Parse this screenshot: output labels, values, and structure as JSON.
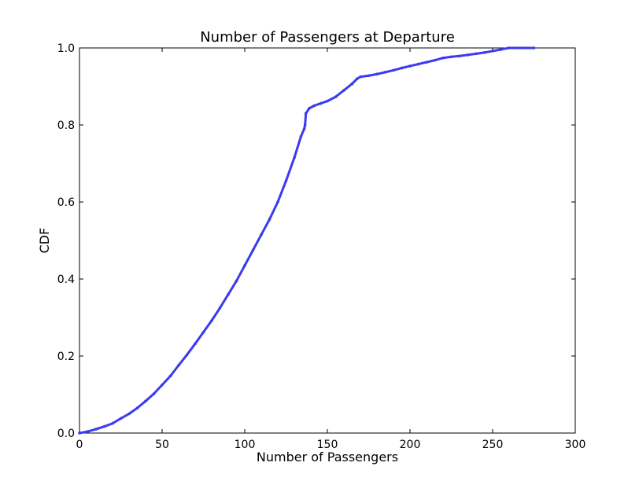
{
  "chart_data": {
    "type": "line",
    "title": "Number of Passengers at Departure",
    "xlabel": "Number of Passengers",
    "ylabel": "CDF",
    "xlim": [
      0,
      300
    ],
    "ylim": [
      0,
      1
    ],
    "xticks": [
      0,
      50,
      100,
      150,
      200,
      250,
      300
    ],
    "yticks": [
      0.0,
      0.2,
      0.4,
      0.6,
      0.8,
      1.0
    ],
    "xtick_labels": [
      "0",
      "50",
      "100",
      "150",
      "200",
      "250",
      "300"
    ],
    "ytick_labels": [
      "0.0",
      "0.2",
      "0.4",
      "0.6",
      "0.8",
      "1.0"
    ],
    "grid": false,
    "legend": null,
    "colors": {
      "series": "#3b3bf0",
      "axes": "#000000",
      "background": "#ffffff"
    },
    "series": [
      {
        "x": [
          0,
          5,
          10,
          15,
          20,
          25,
          30,
          35,
          40,
          45,
          50,
          55,
          60,
          65,
          70,
          75,
          80,
          85,
          90,
          95,
          100,
          105,
          110,
          115,
          120,
          125,
          130,
          134,
          136,
          136.5,
          137,
          139,
          142,
          146,
          150,
          155,
          160,
          165,
          168,
          170,
          175,
          180,
          185,
          190,
          195,
          200,
          205,
          210,
          215,
          220,
          225,
          230,
          235,
          240,
          245,
          250,
          255,
          260,
          265,
          270,
          275
        ],
        "y": [
          0.0,
          0.004,
          0.01,
          0.017,
          0.025,
          0.038,
          0.05,
          0.065,
          0.083,
          0.102,
          0.125,
          0.148,
          0.176,
          0.203,
          0.232,
          0.262,
          0.292,
          0.325,
          0.36,
          0.395,
          0.435,
          0.475,
          0.515,
          0.555,
          0.6,
          0.655,
          0.715,
          0.77,
          0.79,
          0.8,
          0.83,
          0.843,
          0.85,
          0.856,
          0.862,
          0.873,
          0.89,
          0.907,
          0.92,
          0.925,
          0.928,
          0.932,
          0.937,
          0.942,
          0.948,
          0.953,
          0.958,
          0.963,
          0.968,
          0.974,
          0.977,
          0.979,
          0.982,
          0.985,
          0.988,
          0.992,
          0.996,
          1.0,
          1.0,
          1.0,
          1.0
        ]
      }
    ]
  }
}
